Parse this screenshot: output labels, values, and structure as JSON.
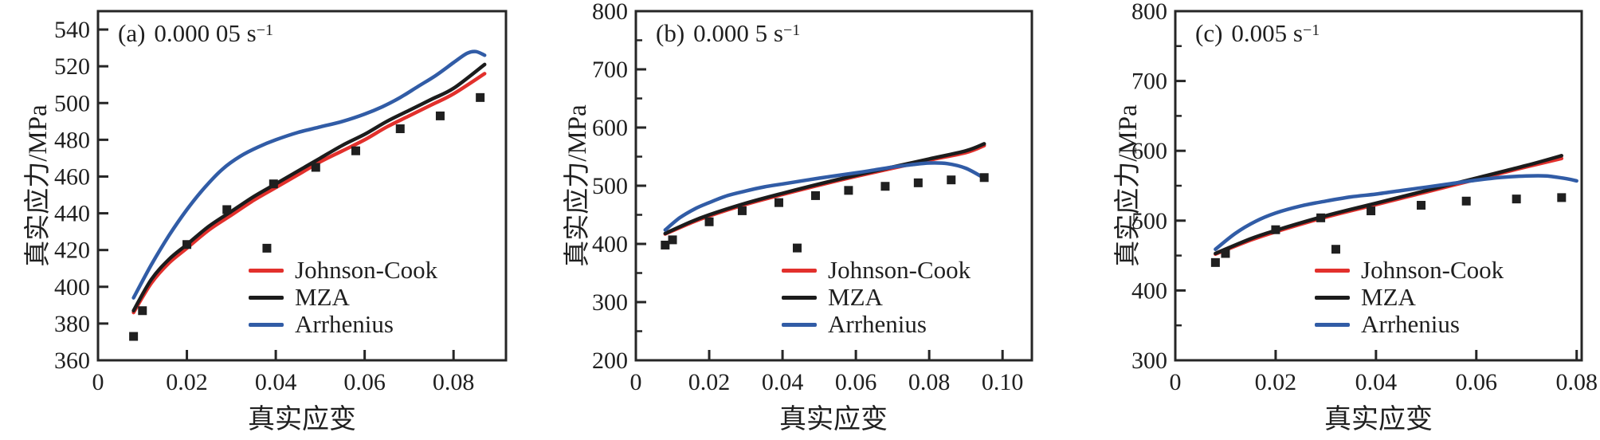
{
  "figure": {
    "xlabel": "真实应变",
    "ylabel": "真实应力/MPa",
    "colors": {
      "axis": "#262626",
      "text": "#1f1f1f",
      "johnson_cook": "#e2302c",
      "mza": "#1c1c1c",
      "arrhenius": "#315ca6",
      "marker": "#1f1f1f"
    },
    "legend": {
      "position": "lower-right-inside",
      "items": [
        {
          "label": "Johnson-Cook",
          "color": "#e2302c"
        },
        {
          "label": "MZA",
          "color": "#1c1c1c"
        },
        {
          "label": "Arrhenius",
          "color": "#315ca6"
        }
      ]
    }
  },
  "chart_data": [
    {
      "type": "line",
      "panel_tag": "(a)",
      "rate_value": "0.000 05 s",
      "rate_exponent": "−1",
      "xlabel": "真实应变",
      "ylabel": "真实应力/MPa",
      "xlim": [
        0,
        0.0918
      ],
      "ylim": [
        360,
        550
      ],
      "xticks": [
        0,
        0.02,
        0.04,
        0.06,
        0.08
      ],
      "xtick_labels": [
        "0",
        "0.02",
        "0.04",
        "0.06",
        "0.08"
      ],
      "yticks": [
        360,
        380,
        400,
        420,
        440,
        460,
        480,
        500,
        520,
        540
      ],
      "ytick_labels": [
        "360",
        "380",
        "400",
        "420",
        "440",
        "460",
        "480",
        "500",
        "520",
        "540"
      ],
      "minor_yticks": [],
      "grid": false,
      "series": [
        {
          "name": "Johnson-Cook",
          "type": "line",
          "color": "#e2302c",
          "points": [
            [
              0.008,
              386
            ],
            [
              0.012,
              402
            ],
            [
              0.016,
              413
            ],
            [
              0.02,
              421
            ],
            [
              0.025,
              431
            ],
            [
              0.03,
              439
            ],
            [
              0.035,
              447
            ],
            [
              0.04,
              454
            ],
            [
              0.045,
              461
            ],
            [
              0.05,
              468
            ],
            [
              0.055,
              474
            ],
            [
              0.06,
              480
            ],
            [
              0.065,
              487
            ],
            [
              0.07,
              493
            ],
            [
              0.075,
              499
            ],
            [
              0.08,
              505
            ],
            [
              0.087,
              516
            ]
          ]
        },
        {
          "name": "MZA",
          "type": "line",
          "color": "#1c1c1c",
          "points": [
            [
              0.008,
              387
            ],
            [
              0.012,
              404
            ],
            [
              0.016,
              415
            ],
            [
              0.02,
              423
            ],
            [
              0.025,
              433
            ],
            [
              0.03,
              441
            ],
            [
              0.035,
              449
            ],
            [
              0.04,
              456
            ],
            [
              0.045,
              463
            ],
            [
              0.05,
              470
            ],
            [
              0.055,
              477
            ],
            [
              0.06,
              483
            ],
            [
              0.065,
              490
            ],
            [
              0.07,
              496
            ],
            [
              0.075,
              502
            ],
            [
              0.08,
              508
            ],
            [
              0.087,
              521
            ]
          ]
        },
        {
          "name": "Arrhenius",
          "type": "line",
          "color": "#315ca6",
          "points": [
            [
              0.008,
              394
            ],
            [
              0.012,
              412
            ],
            [
              0.016,
              428
            ],
            [
              0.02,
              442
            ],
            [
              0.024,
              454
            ],
            [
              0.028,
              464
            ],
            [
              0.032,
              471
            ],
            [
              0.036,
              476
            ],
            [
              0.04,
              480
            ],
            [
              0.045,
              484
            ],
            [
              0.05,
              487
            ],
            [
              0.055,
              490
            ],
            [
              0.06,
              494
            ],
            [
              0.064,
              498
            ],
            [
              0.068,
              503
            ],
            [
              0.072,
              509
            ],
            [
              0.076,
              515
            ],
            [
              0.08,
              522
            ],
            [
              0.083,
              527
            ],
            [
              0.085,
              528
            ],
            [
              0.087,
              526
            ]
          ]
        },
        {
          "name": "experiment",
          "type": "scatter",
          "color": "#1f1f1f",
          "points": [
            [
              0.008,
              373
            ],
            [
              0.01,
              387
            ],
            [
              0.02,
              423
            ],
            [
              0.029,
              442
            ],
            [
              0.038,
              421
            ],
            [
              0.0395,
              456
            ],
            [
              0.049,
              465
            ],
            [
              0.058,
              474
            ],
            [
              0.068,
              486
            ],
            [
              0.077,
              493
            ],
            [
              0.086,
              503
            ]
          ]
        }
      ]
    },
    {
      "type": "line",
      "panel_tag": "(b)",
      "rate_value": "0.000 5 s",
      "rate_exponent": "−1",
      "xlabel": "真实应变",
      "ylabel": "真实应力/MPa",
      "xlim": [
        0,
        0.108
      ],
      "ylim": [
        200,
        800
      ],
      "xticks": [
        0,
        0.02,
        0.04,
        0.06,
        0.08,
        0.1
      ],
      "xtick_labels": [
        "0",
        "0.02",
        "0.04",
        "0.06",
        "0.08",
        "0.10"
      ],
      "yticks": [
        200,
        300,
        400,
        500,
        600,
        700,
        800
      ],
      "ytick_labels": [
        "200",
        "300",
        "400",
        "500",
        "600",
        "700",
        "800"
      ],
      "minor_yticks": [
        250,
        350,
        450,
        550,
        650,
        750
      ],
      "grid": false,
      "series": [
        {
          "name": "Johnson-Cook",
          "type": "line",
          "color": "#e2302c",
          "points": [
            [
              0.008,
              417
            ],
            [
              0.015,
              436
            ],
            [
              0.02,
              448
            ],
            [
              0.03,
              468
            ],
            [
              0.04,
              485
            ],
            [
              0.05,
              501
            ],
            [
              0.06,
              516
            ],
            [
              0.07,
              530
            ],
            [
              0.08,
              544
            ],
            [
              0.09,
              557
            ],
            [
              0.095,
              569
            ]
          ]
        },
        {
          "name": "MZA",
          "type": "line",
          "color": "#1c1c1c",
          "points": [
            [
              0.008,
              418
            ],
            [
              0.015,
              438
            ],
            [
              0.02,
              450
            ],
            [
              0.03,
              470
            ],
            [
              0.04,
              487
            ],
            [
              0.05,
              503
            ],
            [
              0.06,
              518
            ],
            [
              0.07,
              532
            ],
            [
              0.08,
              546
            ],
            [
              0.09,
              560
            ],
            [
              0.095,
              572
            ]
          ]
        },
        {
          "name": "Arrhenius",
          "type": "line",
          "color": "#315ca6",
          "points": [
            [
              0.008,
              424
            ],
            [
              0.012,
              445
            ],
            [
              0.016,
              460
            ],
            [
              0.02,
              471
            ],
            [
              0.025,
              483
            ],
            [
              0.03,
              491
            ],
            [
              0.035,
              498
            ],
            [
              0.04,
              503
            ],
            [
              0.05,
              513
            ],
            [
              0.06,
              522
            ],
            [
              0.065,
              527
            ],
            [
              0.07,
              532
            ],
            [
              0.075,
              536
            ],
            [
              0.08,
              539
            ],
            [
              0.085,
              538
            ],
            [
              0.09,
              530
            ],
            [
              0.095,
              513
            ]
          ]
        },
        {
          "name": "experiment",
          "type": "scatter",
          "color": "#1f1f1f",
          "points": [
            [
              0.008,
              398
            ],
            [
              0.01,
              407
            ],
            [
              0.02,
              438
            ],
            [
              0.029,
              457
            ],
            [
              0.039,
              471
            ],
            [
              0.044,
              393
            ],
            [
              0.049,
              483
            ],
            [
              0.058,
              492
            ],
            [
              0.068,
              499
            ],
            [
              0.077,
              505
            ],
            [
              0.086,
              510
            ],
            [
              0.095,
              514
            ]
          ]
        }
      ]
    },
    {
      "type": "line",
      "panel_tag": "(c)",
      "rate_value": "0.005 s",
      "rate_exponent": "−1",
      "xlabel": "真实应变",
      "ylabel": "真实应力/MPa",
      "xlim": [
        0,
        0.081
      ],
      "ylim": [
        300,
        800
      ],
      "xticks": [
        0,
        0.02,
        0.04,
        0.06,
        0.08
      ],
      "xtick_labels": [
        "0",
        "0.02",
        "0.04",
        "0.06",
        "0.08"
      ],
      "yticks": [
        300,
        400,
        500,
        600,
        700,
        800
      ],
      "ytick_labels": [
        "300",
        "400",
        "500",
        "600",
        "700",
        "800"
      ],
      "minor_yticks": [
        350,
        450,
        550,
        650,
        750
      ],
      "grid": false,
      "series": [
        {
          "name": "Johnson-Cook",
          "type": "line",
          "color": "#e2302c",
          "points": [
            [
              0.008,
              452
            ],
            [
              0.015,
              472
            ],
            [
              0.02,
              484
            ],
            [
              0.03,
              505
            ],
            [
              0.04,
              523
            ],
            [
              0.05,
              541
            ],
            [
              0.06,
              559
            ],
            [
              0.07,
              577
            ],
            [
              0.077,
              589
            ]
          ]
        },
        {
          "name": "MZA",
          "type": "line",
          "color": "#1c1c1c",
          "points": [
            [
              0.008,
              453
            ],
            [
              0.015,
              474
            ],
            [
              0.02,
              486
            ],
            [
              0.03,
              507
            ],
            [
              0.04,
              525
            ],
            [
              0.05,
              543
            ],
            [
              0.06,
              561
            ],
            [
              0.07,
              579
            ],
            [
              0.077,
              593
            ]
          ]
        },
        {
          "name": "Arrhenius",
          "type": "line",
          "color": "#315ca6",
          "points": [
            [
              0.008,
              459
            ],
            [
              0.012,
              482
            ],
            [
              0.016,
              499
            ],
            [
              0.02,
              511
            ],
            [
              0.025,
              521
            ],
            [
              0.03,
              528
            ],
            [
              0.035,
              534
            ],
            [
              0.04,
              538
            ],
            [
              0.045,
              543
            ],
            [
              0.05,
              548
            ],
            [
              0.055,
              553
            ],
            [
              0.06,
              558
            ],
            [
              0.065,
              562
            ],
            [
              0.07,
              564
            ],
            [
              0.074,
              564
            ],
            [
              0.078,
              560
            ],
            [
              0.08,
              557
            ]
          ]
        },
        {
          "name": "experiment",
          "type": "scatter",
          "color": "#1f1f1f",
          "points": [
            [
              0.008,
              440
            ],
            [
              0.01,
              453
            ],
            [
              0.02,
              487
            ],
            [
              0.029,
              504
            ],
            [
              0.032,
              459
            ],
            [
              0.039,
              514
            ],
            [
              0.049,
              522
            ],
            [
              0.058,
              528
            ],
            [
              0.068,
              531
            ],
            [
              0.077,
              533
            ]
          ]
        }
      ]
    }
  ]
}
